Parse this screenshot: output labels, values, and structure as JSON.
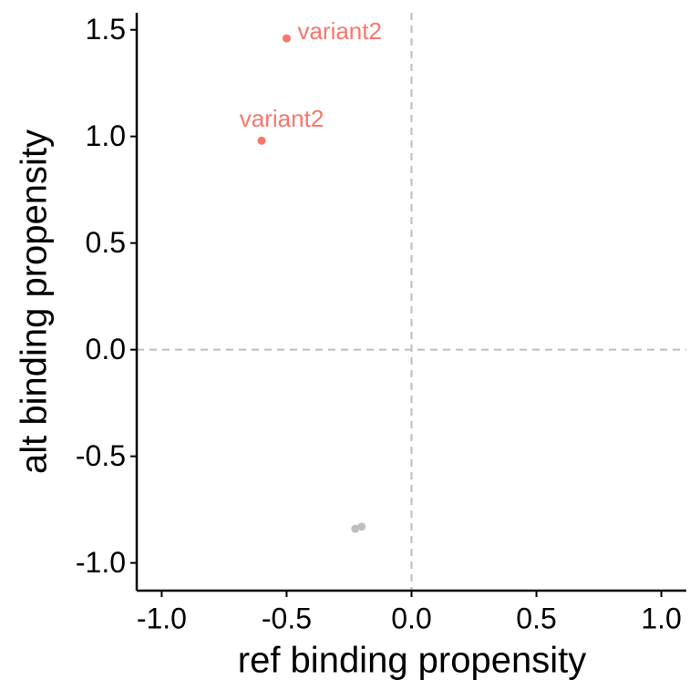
{
  "chart_data": {
    "type": "scatter",
    "xlabel": "ref binding propensity",
    "ylabel": "alt binding propensity",
    "xlim": [
      -1.1,
      1.1
    ],
    "ylim": [
      -1.13,
      1.58
    ],
    "xticks": [
      {
        "value": -1,
        "label": "-1.0"
      },
      -0.5,
      {
        "value": 0,
        "label": "0.0"
      },
      0.5,
      {
        "value": 1,
        "label": "1.0"
      }
    ],
    "yticks": [
      {
        "value": -1,
        "label": "-1.0"
      },
      -0.5,
      {
        "value": 0,
        "label": "0.0"
      },
      0.5,
      {
        "value": 1,
        "label": "1.0"
      },
      1.5
    ],
    "hlines": [
      0
    ],
    "vlines": [
      0
    ],
    "refline_color": "#bebebe",
    "series": [
      {
        "color": "#f8766d",
        "x": [
          -0.5,
          -0.6
        ],
        "y": [
          1.46,
          0.98
        ],
        "labels": [
          "variant2",
          "variant2"
        ]
      },
      {
        "color": "#bebebe",
        "x": [
          -0.225,
          -0.2
        ],
        "y": [
          -0.84,
          -0.83
        ]
      }
    ]
  }
}
